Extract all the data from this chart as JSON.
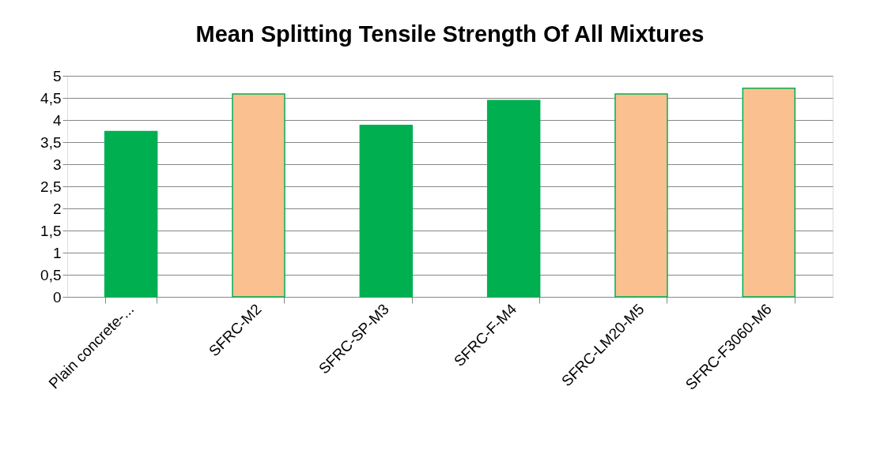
{
  "chart_data": {
    "type": "bar",
    "title": "Mean Splitting Tensile Strength Of All Mixtures",
    "categories": [
      "Plain concrete-...",
      "SFRC-M2",
      "SFRC-SP-M3",
      "SFRC-F-M4",
      "SFRC-LM20-M5",
      "SFRC-F3060-M6"
    ],
    "values": [
      3.74,
      4.59,
      3.88,
      4.44,
      4.59,
      4.72
    ],
    "colors": [
      "#00b050",
      "#fac090",
      "#00b050",
      "#00b050",
      "#fac090",
      "#fac090"
    ],
    "ylim": [
      0,
      5
    ],
    "yticks": [
      0,
      {
        "value": 0.5,
        "label": "0,5"
      },
      1,
      {
        "value": 1.5,
        "label": "1,5"
      },
      2,
      {
        "value": 2.5,
        "label": "2,5"
      },
      3,
      {
        "value": 3.5,
        "label": "3,5"
      },
      4,
      {
        "value": 4.5,
        "label": "4,5"
      },
      5
    ],
    "grid": "y"
  }
}
